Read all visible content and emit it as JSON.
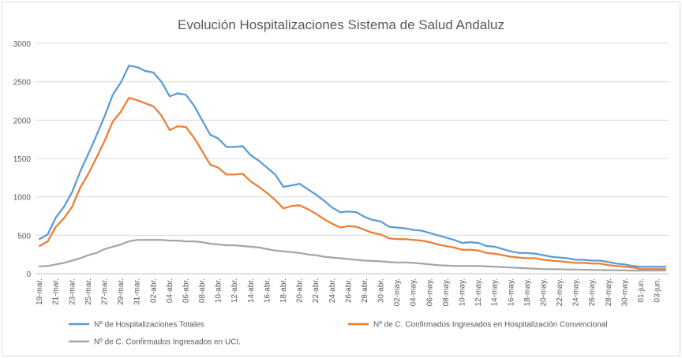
{
  "chart_data": {
    "type": "line",
    "title": "Evolución Hospitalizaciones Sistema de Salud Andaluz",
    "xlabel": "",
    "ylabel": "",
    "ylim": [
      0,
      3000
    ],
    "yticks": [
      0,
      500,
      1000,
      1500,
      2000,
      2500,
      3000
    ],
    "grid": true,
    "legend_position": "bottom",
    "categories": [
      "19-mar.",
      "20-mar.",
      "21-mar.",
      "22-mar.",
      "23-mar.",
      "24-mar.",
      "25-mar.",
      "26-mar.",
      "27-mar.",
      "28-mar.",
      "29-mar.",
      "30-mar.",
      "31-mar.",
      "01-abr.",
      "02-abr.",
      "03-abr.",
      "04-abr.",
      "05-abr.",
      "06-abr.",
      "07-abr.",
      "08-abr.",
      "09-abr.",
      "10-abr.",
      "11-abr.",
      "12-abr.",
      "13-abr.",
      "14-abr.",
      "15-abr.",
      "16-abr.",
      "17-abr.",
      "18-abr.",
      "19-abr.",
      "20-abr.",
      "21-abr.",
      "22-abr.",
      "23-abr.",
      "24-abr.",
      "25-abr.",
      "26-abr.",
      "27-abr.",
      "28-abr.",
      "29-abr.",
      "30-abr.",
      "01-may.",
      "02-may.",
      "03-may.",
      "04-may.",
      "05-may.",
      "06-may.",
      "07-may.",
      "08-may.",
      "09-may.",
      "10-may.",
      "11-may.",
      "12-may.",
      "13-may.",
      "14-may.",
      "15-may.",
      "16-may.",
      "17-may.",
      "18-may.",
      "19-may.",
      "20-may.",
      "21-may.",
      "22-may.",
      "23-may.",
      "24-may.",
      "25-may.",
      "26-may.",
      "27-may.",
      "28-may.",
      "29-may.",
      "30-may.",
      "31-may.",
      "01-jun.",
      "02-jun.",
      "03-jun.",
      "04-jun."
    ],
    "shown_tick_labels": [
      "19-mar.",
      "21-mar.",
      "23-mar.",
      "25-mar.",
      "27-mar.",
      "29-mar.",
      "31-mar.",
      "02-abr.",
      "04-abr.",
      "06-abr.",
      "08-abr.",
      "10-abr.",
      "12-abr.",
      "14-abr.",
      "16-abr.",
      "18-abr.",
      "20-abr.",
      "22-abr.",
      "24-abr.",
      "26-abr.",
      "28-abr.",
      "30-abr.",
      "02-may.",
      "04-may.",
      "06-may.",
      "08-may.",
      "10-may.",
      "12-may.",
      "14-may.",
      "16-may.",
      "18-may.",
      "20-may.",
      "22-may.",
      "24-may.",
      "26-may.",
      "28-may.",
      "30-may.",
      "01-jun.",
      "03-jun."
    ],
    "series": [
      {
        "name": "Nº de Hospitalizaciones Totales",
        "color": "#5b9bd5",
        "values": [
          450,
          510,
          730,
          870,
          1060,
          1330,
          1560,
          1800,
          2050,
          2330,
          2490,
          2710,
          2690,
          2640,
          2620,
          2500,
          2310,
          2350,
          2330,
          2190,
          2000,
          1810,
          1760,
          1650,
          1650,
          1660,
          1540,
          1470,
          1380,
          1290,
          1130,
          1150,
          1170,
          1100,
          1030,
          950,
          860,
          800,
          810,
          800,
          740,
          700,
          680,
          610,
          600,
          590,
          570,
          560,
          530,
          500,
          470,
          440,
          400,
          410,
          400,
          360,
          350,
          320,
          290,
          270,
          270,
          260,
          240,
          220,
          210,
          200,
          180,
          180,
          170,
          170,
          150,
          130,
          120,
          100,
          90,
          90,
          90,
          90
        ]
      },
      {
        "name": "Nº de C. Confirmados Ingresados en Hospitalización Convencional",
        "color": "#ed7d31",
        "values": [
          360,
          420,
          610,
          720,
          870,
          1120,
          1300,
          1510,
          1730,
          1980,
          2110,
          2290,
          2260,
          2220,
          2180,
          2060,
          1870,
          1920,
          1910,
          1770,
          1600,
          1420,
          1380,
          1290,
          1290,
          1300,
          1200,
          1130,
          1050,
          960,
          850,
          880,
          890,
          840,
          780,
          710,
          650,
          600,
          620,
          610,
          570,
          530,
          510,
          460,
          450,
          450,
          440,
          430,
          410,
          380,
          360,
          340,
          310,
          310,
          300,
          270,
          260,
          240,
          220,
          210,
          200,
          200,
          180,
          170,
          160,
          150,
          140,
          140,
          130,
          130,
          110,
          100,
          90,
          80,
          60,
          60,
          60,
          60
        ]
      },
      {
        "name": "Nº de C. Confirmados Ingresados en UCI.",
        "color": "#a5a5a5",
        "values": [
          95,
          100,
          120,
          140,
          170,
          200,
          240,
          270,
          320,
          350,
          380,
          420,
          440,
          440,
          440,
          440,
          430,
          430,
          420,
          420,
          410,
          390,
          380,
          370,
          370,
          360,
          350,
          340,
          320,
          300,
          290,
          280,
          270,
          250,
          240,
          220,
          210,
          200,
          190,
          180,
          170,
          165,
          160,
          150,
          145,
          145,
          140,
          130,
          120,
          110,
          105,
          100,
          100,
          100,
          100,
          95,
          90,
          85,
          80,
          75,
          70,
          65,
          60,
          58,
          56,
          54,
          52,
          50,
          48,
          46,
          45,
          43,
          42,
          40,
          40,
          40,
          40,
          40
        ]
      }
    ]
  }
}
